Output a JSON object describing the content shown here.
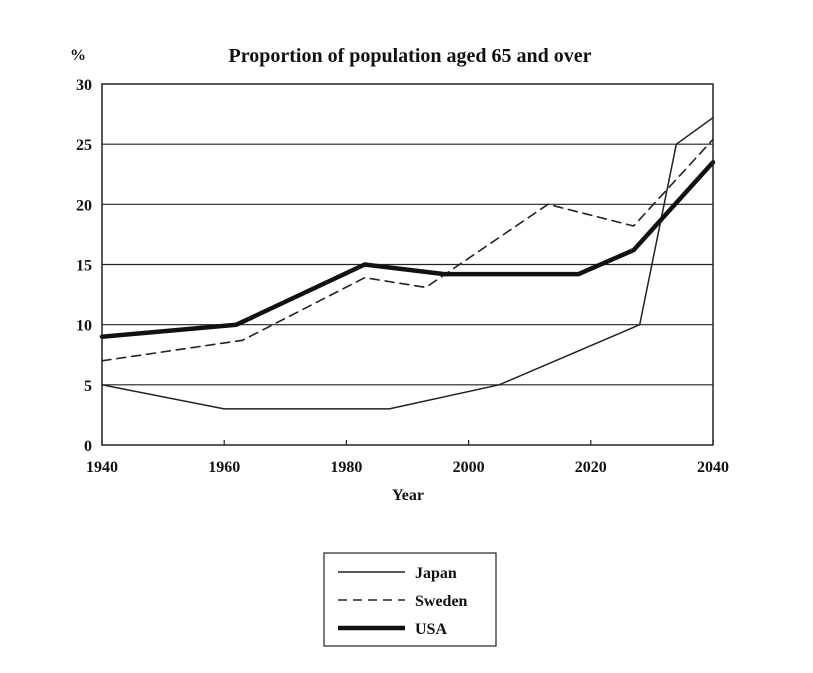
{
  "chart_data": {
    "type": "line",
    "title": "Proportion of population aged 65 and over",
    "ylabel": "%",
    "xlabel": "Year",
    "xlim": [
      1940,
      2040
    ],
    "ylim": [
      0,
      30
    ],
    "x_ticks": [
      1940,
      1960,
      1980,
      2000,
      2020,
      2040
    ],
    "y_ticks": [
      0,
      5,
      10,
      15,
      20,
      25,
      30
    ],
    "grid": "horizontal",
    "legend_position": "bottom-center",
    "series": [
      {
        "name": "Japan",
        "style": "solid-thin",
        "color": "#222222",
        "points": [
          [
            1940,
            5
          ],
          [
            1960,
            3
          ],
          [
            1987,
            3
          ],
          [
            2005,
            5
          ],
          [
            2028,
            10
          ],
          [
            2034,
            25
          ],
          [
            2040,
            27.2
          ]
        ]
      },
      {
        "name": "Sweden",
        "style": "dashed",
        "color": "#222222",
        "points": [
          [
            1940,
            7
          ],
          [
            1963,
            8.7
          ],
          [
            1983,
            13.9
          ],
          [
            1993,
            13.1
          ],
          [
            2013,
            20
          ],
          [
            2027,
            18.2
          ],
          [
            2040,
            25.4
          ]
        ]
      },
      {
        "name": "USA",
        "style": "solid-thick",
        "color": "#111111",
        "points": [
          [
            1940,
            9
          ],
          [
            1962,
            10
          ],
          [
            1983,
            15
          ],
          [
            1996,
            14.2
          ],
          [
            2018,
            14.2
          ],
          [
            2027,
            16.2
          ],
          [
            2040,
            23.5
          ]
        ]
      }
    ]
  }
}
